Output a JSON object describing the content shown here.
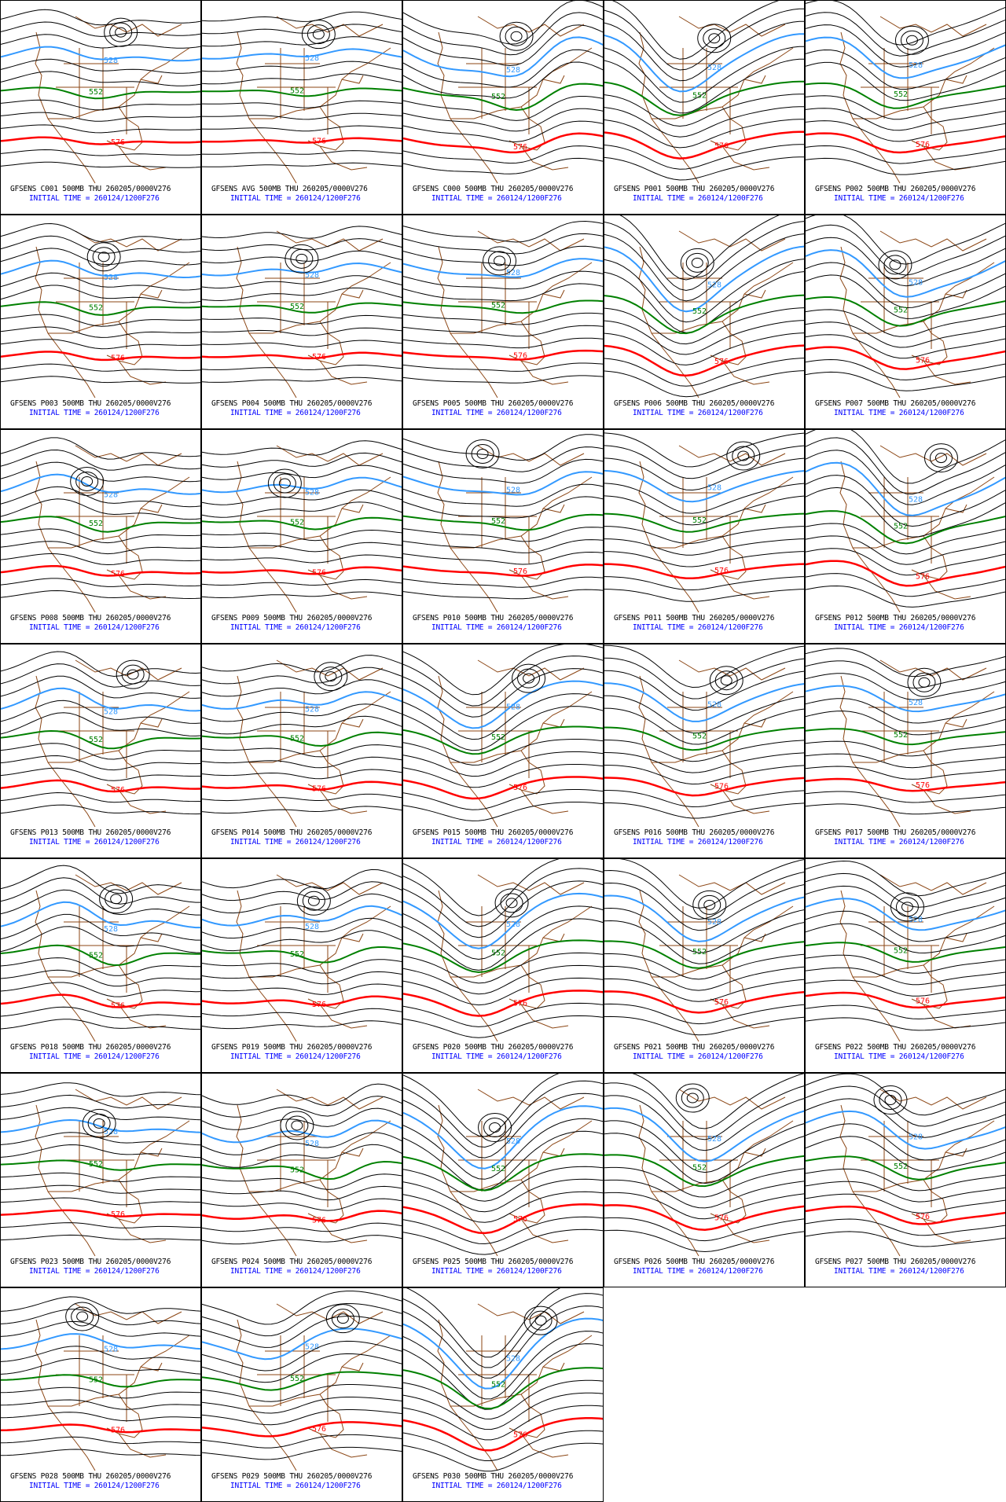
{
  "chart_data": {
    "type": "contour-map-grid",
    "field": "500MB",
    "valid": "THU 260205/0000V276",
    "initial_time_text": "INITIAL TIME = 260124/1200F276",
    "highlighted_contours": [
      {
        "value": "528",
        "color": "#3399ff"
      },
      {
        "value": "552",
        "color": "#008000"
      },
      {
        "value": "576",
        "color": "#ff0000"
      }
    ],
    "other_contour_color": "#000000",
    "map_outline_color": "#8b4513",
    "panels": [
      {
        "member": "C001",
        "title": "GFSENS C001 500MB THU 260205/0000V276"
      },
      {
        "member": "AVG",
        "title": "GFSENS AVG 500MB THU 260205/0000V276"
      },
      {
        "member": "C000",
        "title": "GFSENS C000 500MB THU 260205/0000V276"
      },
      {
        "member": "P001",
        "title": "GFSENS P001 500MB THU 260205/0000V276"
      },
      {
        "member": "P002",
        "title": "GFSENS P002 500MB THU 260205/0000V276"
      },
      {
        "member": "P003",
        "title": "GFSENS P003 500MB THU 260205/0000V276"
      },
      {
        "member": "P004",
        "title": "GFSENS P004 500MB THU 260205/0000V276"
      },
      {
        "member": "P005",
        "title": "GFSENS P005 500MB THU 260205/0000V276"
      },
      {
        "member": "P006",
        "title": "GFSENS P006 500MB THU 260205/0000V276"
      },
      {
        "member": "P007",
        "title": "GFSENS P007 500MB THU 260205/0000V276"
      },
      {
        "member": "P008",
        "title": "GFSENS P008 500MB THU 260205/0000V276"
      },
      {
        "member": "P009",
        "title": "GFSENS P009 500MB THU 260205/0000V276"
      },
      {
        "member": "P010",
        "title": "GFSENS P010 500MB THU 260205/0000V276"
      },
      {
        "member": "P011",
        "title": "GFSENS P011 500MB THU 260205/0000V276"
      },
      {
        "member": "P012",
        "title": "GFSENS P012 500MB THU 260205/0000V276"
      },
      {
        "member": "P013",
        "title": "GFSENS P013 500MB THU 260205/0000V276"
      },
      {
        "member": "P014",
        "title": "GFSENS P014 500MB THU 260205/0000V276"
      },
      {
        "member": "P015",
        "title": "GFSENS P015 500MB THU 260205/0000V276"
      },
      {
        "member": "P016",
        "title": "GFSENS P016 500MB THU 260205/0000V276"
      },
      {
        "member": "P017",
        "title": "GFSENS P017 500MB THU 260205/0000V276"
      },
      {
        "member": "P018",
        "title": "GFSENS P018 500MB THU 260205/0000V276"
      },
      {
        "member": "P019",
        "title": "GFSENS P019 500MB THU 260205/0000V276"
      },
      {
        "member": "P020",
        "title": "GFSENS P020 500MB THU 260205/0000V276"
      },
      {
        "member": "P021",
        "title": "GFSENS P021 500MB THU 260205/0000V276"
      },
      {
        "member": "P022",
        "title": "GFSENS P022 500MB THU 260205/0000V276"
      },
      {
        "member": "P023",
        "title": "GFSENS P023 500MB THU 260205/0000V276"
      },
      {
        "member": "P024",
        "title": "GFSENS P024 500MB THU 260205/0000V276"
      },
      {
        "member": "P025",
        "title": "GFSENS P025 500MB THU 260205/0000V276"
      },
      {
        "member": "P026",
        "title": "GFSENS P026 500MB THU 260205/0000V276"
      },
      {
        "member": "P027",
        "title": "GFSENS P027 500MB THU 260205/0000V276"
      },
      {
        "member": "P028",
        "title": "GFSENS P028 500MB THU 260205/0000V276"
      },
      {
        "member": "P029",
        "title": "GFSENS P029 500MB THU 260205/0000V276"
      },
      {
        "member": "P030",
        "title": "GFSENS P030 500MB THU 260205/0000V276"
      }
    ]
  }
}
